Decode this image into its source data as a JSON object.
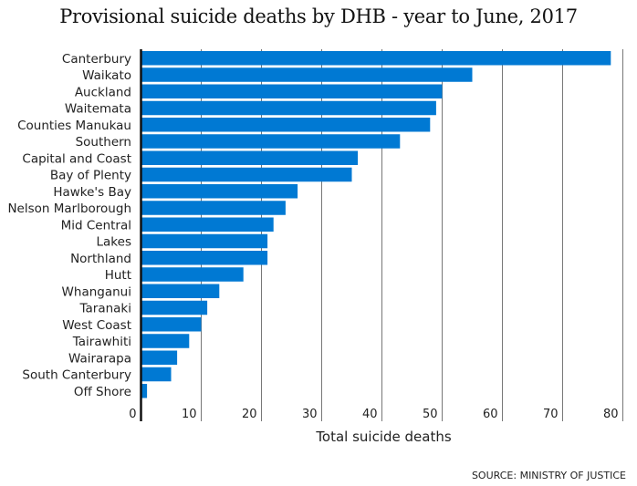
{
  "chart_data": {
    "type": "bar",
    "orientation": "horizontal",
    "title": "Provisional suicide deaths by DHB - year to June, 2017",
    "xlabel": "Total suicide deaths",
    "ylabel": "",
    "xlim": [
      0,
      80
    ],
    "xticks": [
      0,
      10,
      20,
      30,
      40,
      50,
      60,
      70,
      80
    ],
    "grid": true,
    "bar_color": "#0079d3",
    "categories": [
      "Canterbury",
      "Waikato",
      "Auckland",
      "Waitemata",
      "Counties Manukau",
      "Southern",
      "Capital and Coast",
      "Bay of Plenty",
      "Hawke's Bay",
      "Nelson Marlborough",
      "Mid Central",
      "Lakes",
      "Northland",
      "Hutt",
      "Whanganui",
      "Taranaki",
      "West Coast",
      "Tairawhiti",
      "Wairarapa",
      "South Canterbury",
      "Off Shore"
    ],
    "values": [
      78,
      55,
      50,
      49,
      48,
      43,
      36,
      35,
      26,
      24,
      22,
      21,
      21,
      17,
      13,
      11,
      10,
      8,
      6,
      5,
      1
    ],
    "source": "SOURCE: MINISTRY OF JUSTICE"
  }
}
